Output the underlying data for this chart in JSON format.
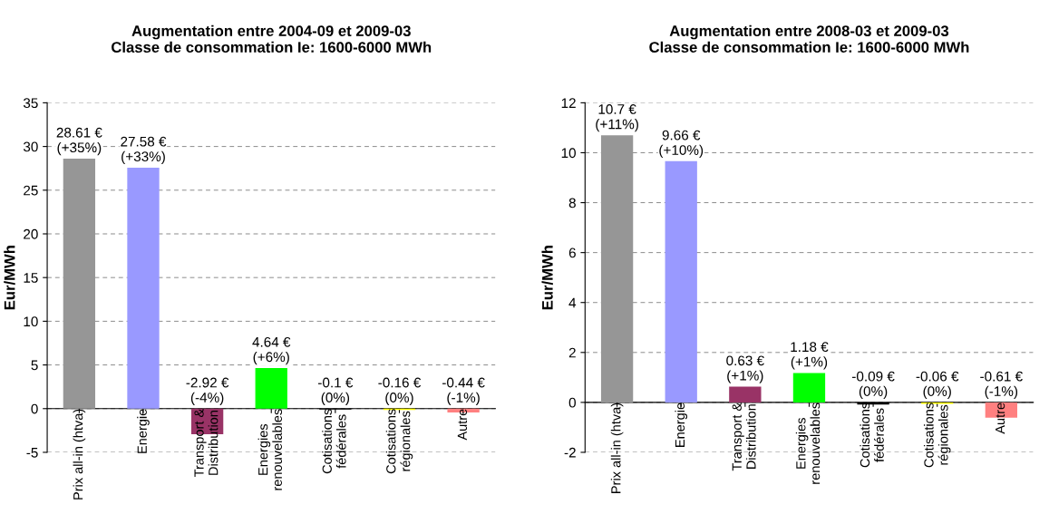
{
  "chart_data": [
    {
      "type": "bar",
      "title": "Augmentation entre 2004-09 et 2009-03\nClasse de consommation Ie: 1600-6000 MWh",
      "ylabel": "Eur/MWh",
      "categories": [
        "Prix all-in (htva)",
        "Energie",
        "Transport &\nDistribution",
        "Energies\nrenouvelables",
        "Cotisations\nfédérales",
        "Cotisations\nrégionales",
        "Autre"
      ],
      "values": [
        28.61,
        27.58,
        -2.92,
        4.64,
        -0.1,
        -0.16,
        -0.44
      ],
      "colors": [
        "#969696",
        "#9999ff",
        "#993366",
        "#00ff00",
        "#000000",
        "#ffff00",
        "#ff8080"
      ],
      "value_labels": [
        "28.61 €\n(+35%)",
        "27.58 €\n(+33%)",
        "-2.92 €\n(-4%)",
        "4.64 €\n(+6%)",
        "-0.1 €\n(0%)",
        "-0.16 €\n(0%)",
        "-0.44 €\n(-1%)"
      ],
      "ylim": [
        -5,
        35
      ],
      "yticks": [
        -5,
        0,
        5,
        10,
        15,
        20,
        25,
        30,
        35
      ],
      "grid": "y"
    },
    {
      "type": "bar",
      "title": "Augmentation entre 2008-03 et 2009-03\nClasse de consommation Ie: 1600-6000 MWh",
      "ylabel": "Eur/MWh",
      "categories": [
        "Prix all-in (htva)",
        "Energie",
        "Transport &\nDistribution",
        "Energies\nrenouvelables",
        "Cotisations\nfédérales",
        "Cotisations\nrégionales",
        "Autre"
      ],
      "values": [
        10.7,
        9.66,
        0.63,
        1.18,
        -0.09,
        -0.06,
        -0.61
      ],
      "colors": [
        "#969696",
        "#9999ff",
        "#993366",
        "#00ff00",
        "#000000",
        "#ffff00",
        "#ff8080"
      ],
      "value_labels": [
        "10.7 €\n(+11%)",
        "9.66 €\n(+10%)",
        "0.63 €\n(+1%)",
        "1.18 €\n(+1%)",
        "-0.09 €\n(0%)",
        "-0.06 €\n(0%)",
        "-0.61 €\n(-1%)"
      ],
      "ylim": [
        -2,
        12
      ],
      "yticks": [
        -2,
        0,
        2,
        4,
        6,
        8,
        10,
        12
      ],
      "grid": "y"
    }
  ]
}
